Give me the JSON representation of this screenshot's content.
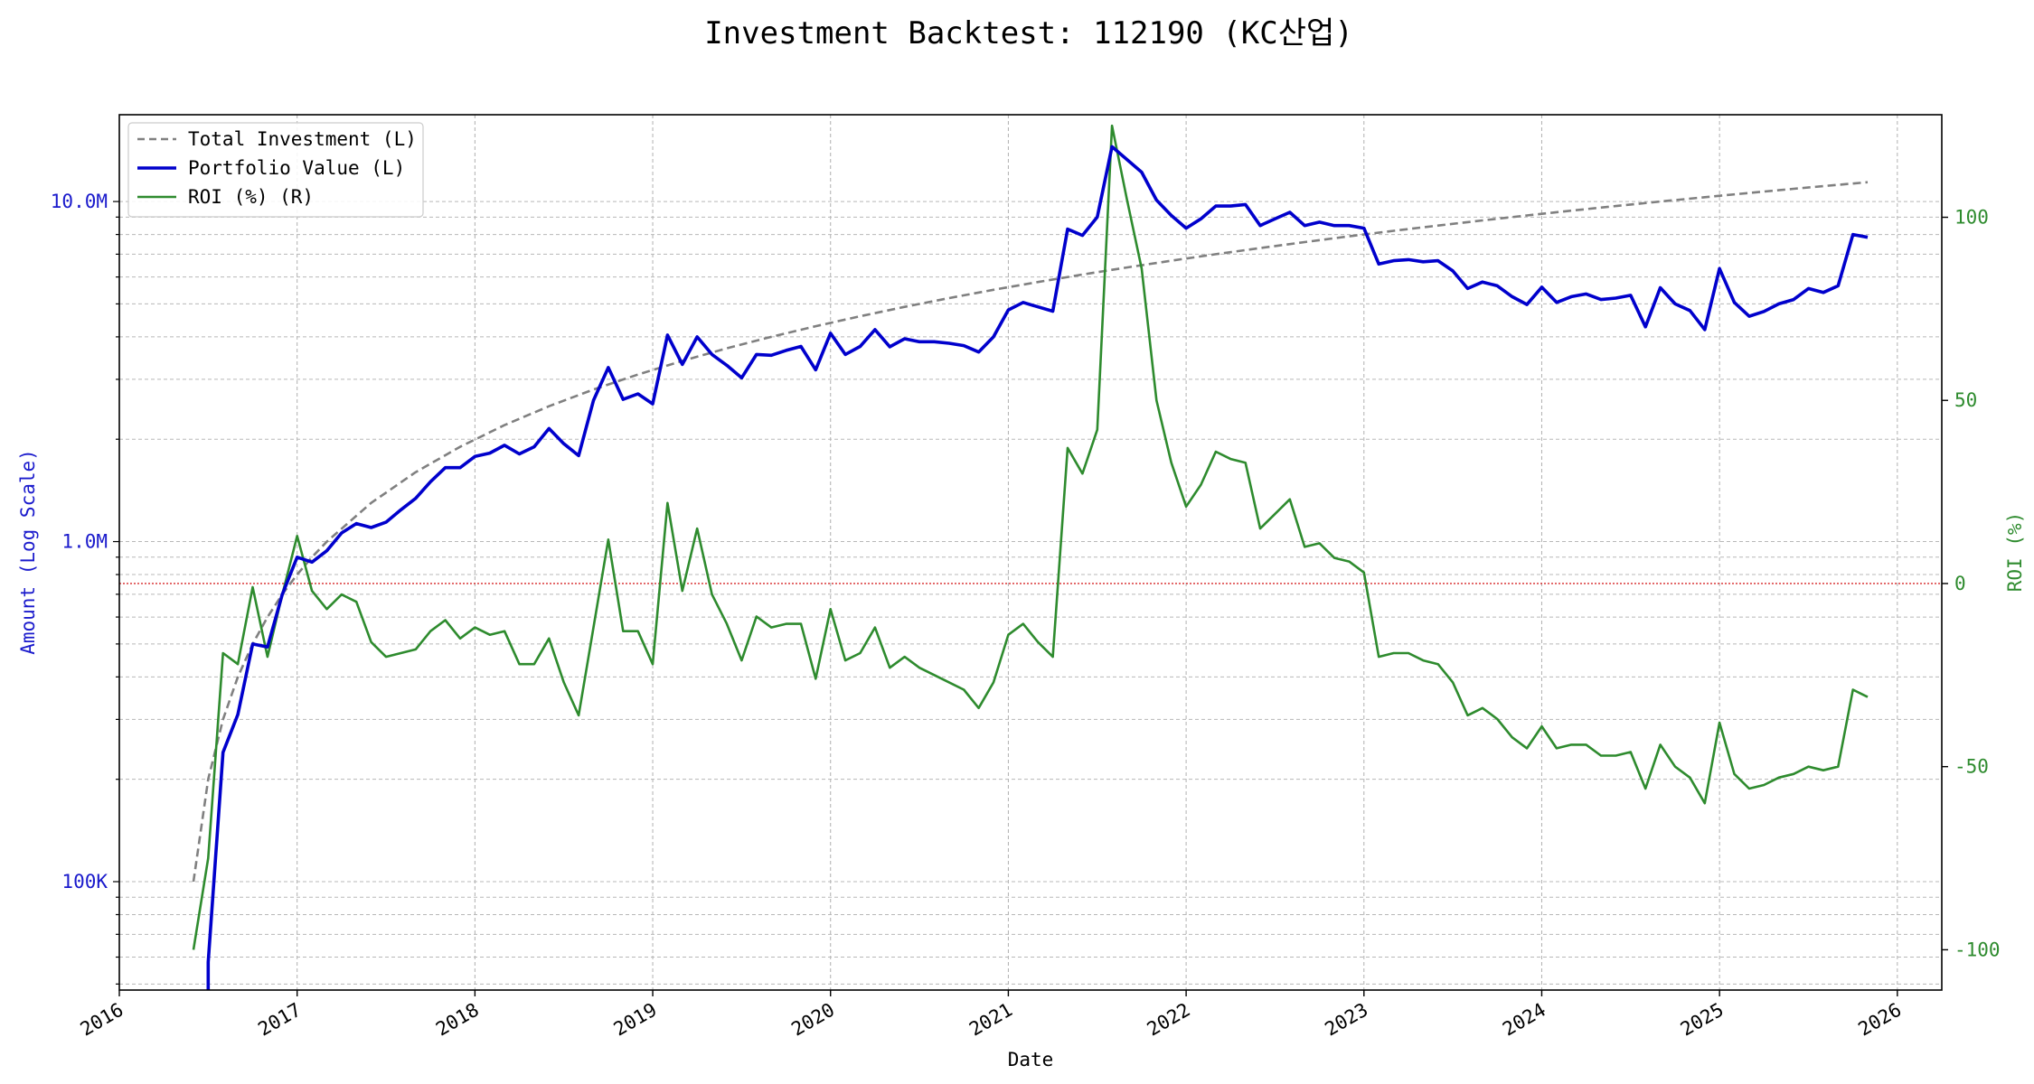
{
  "chart_data": {
    "type": "line",
    "title": "Investment Backtest: 112190 (KC산업)",
    "xlabel": "Date",
    "ylabel_left": "Amount (Log Scale)",
    "ylabel_right": "ROI (%)",
    "left_scale": "log",
    "left_ylim": [
      48000,
      18000000
    ],
    "right_ylim": [
      -111,
      128
    ],
    "xlim": [
      "2016-01-01",
      "2026-04-01"
    ],
    "x_ticks": [
      "2016",
      "2017",
      "2018",
      "2019",
      "2020",
      "2021",
      "2022",
      "2023",
      "2024",
      "2025",
      "2026"
    ],
    "left_ticks": [
      {
        "value": 100000,
        "label": "100K"
      },
      {
        "value": 1000000,
        "label": "1.0M"
      },
      {
        "value": 10000000,
        "label": "10.0M"
      }
    ],
    "right_ticks": [
      -100,
      -50,
      0,
      50,
      100
    ],
    "grid": true,
    "legend_position": "top-left",
    "reference_line": {
      "axis": "right",
      "value": 0,
      "color": "#d62728",
      "style": "dotted"
    },
    "colors": {
      "investment": "#808080",
      "portfolio": "#0000cc",
      "roi": "#2e8b2e",
      "left_axis": "#1a1acc",
      "right_axis": "#2e8b2e"
    },
    "series": [
      {
        "name": "Total Investment (L)",
        "axis": "left",
        "style": "dashed",
        "points": [
          [
            "2016-06",
            100000
          ],
          [
            "2016-07",
            200000
          ],
          [
            "2016-08",
            300000
          ],
          [
            "2016-09",
            400000
          ],
          [
            "2016-10",
            500000
          ],
          [
            "2016-11",
            600000
          ],
          [
            "2016-12",
            700000
          ],
          [
            "2017-01",
            800000
          ],
          [
            "2017-02",
            900000
          ],
          [
            "2017-03",
            1000000
          ],
          [
            "2017-06",
            1300000
          ],
          [
            "2017-09",
            1600000
          ],
          [
            "2017-12",
            1900000
          ],
          [
            "2018-03",
            2200000
          ],
          [
            "2018-06",
            2500000
          ],
          [
            "2018-09",
            2800000
          ],
          [
            "2018-12",
            3100000
          ],
          [
            "2019-03",
            3400000
          ],
          [
            "2019-06",
            3700000
          ],
          [
            "2019-09",
            4000000
          ],
          [
            "2019-12",
            4300000
          ],
          [
            "2020-03",
            4600000
          ],
          [
            "2020-06",
            4900000
          ],
          [
            "2020-09",
            5200000
          ],
          [
            "2020-12",
            5500000
          ],
          [
            "2021-03",
            5800000
          ],
          [
            "2021-06",
            6100000
          ],
          [
            "2021-09",
            6400000
          ],
          [
            "2021-12",
            6700000
          ],
          [
            "2022-03",
            7000000
          ],
          [
            "2022-06",
            7300000
          ],
          [
            "2022-09",
            7600000
          ],
          [
            "2022-12",
            7900000
          ],
          [
            "2023-03",
            8200000
          ],
          [
            "2023-06",
            8500000
          ],
          [
            "2023-09",
            8800000
          ],
          [
            "2023-12",
            9100000
          ],
          [
            "2024-03",
            9400000
          ],
          [
            "2024-06",
            9700000
          ],
          [
            "2024-09",
            10000000
          ],
          [
            "2024-12",
            10300000
          ],
          [
            "2025-03",
            10600000
          ],
          [
            "2025-06",
            10900000
          ],
          [
            "2025-09",
            11200000
          ],
          [
            "2025-11",
            11400000
          ]
        ]
      },
      {
        "name": "Portfolio Value (L)",
        "axis": "left",
        "style": "solid",
        "points": [
          [
            "2016-07",
            40000
          ],
          [
            "2016-07",
            58000
          ],
          [
            "2016-08",
            240000
          ],
          [
            "2016-09",
            310000
          ],
          [
            "2016-10",
            500000
          ],
          [
            "2016-11",
            490000
          ],
          [
            "2016-12",
            700000
          ],
          [
            "2017-01",
            900000
          ],
          [
            "2017-02",
            870000
          ],
          [
            "2017-03",
            940000
          ],
          [
            "2017-04",
            1060000
          ],
          [
            "2017-05",
            1130000
          ],
          [
            "2017-06",
            1100000
          ],
          [
            "2017-07",
            1140000
          ],
          [
            "2017-08",
            1240000
          ],
          [
            "2017-09",
            1340000
          ],
          [
            "2017-10",
            1500000
          ],
          [
            "2017-11",
            1650000
          ],
          [
            "2017-12",
            1650000
          ],
          [
            "2018-01",
            1780000
          ],
          [
            "2018-02",
            1820000
          ],
          [
            "2018-03",
            1920000
          ],
          [
            "2018-04",
            1810000
          ],
          [
            "2018-05",
            1900000
          ],
          [
            "2018-06",
            2150000
          ],
          [
            "2018-07",
            1940000
          ],
          [
            "2018-08",
            1790000
          ],
          [
            "2018-09",
            2600000
          ],
          [
            "2018-10",
            3250000
          ],
          [
            "2018-11",
            2620000
          ],
          [
            "2018-12",
            2720000
          ],
          [
            "2019-01",
            2540000
          ],
          [
            "2019-02",
            4050000
          ],
          [
            "2019-03",
            3320000
          ],
          [
            "2019-04",
            4000000
          ],
          [
            "2019-05",
            3550000
          ],
          [
            "2019-06",
            3300000
          ],
          [
            "2019-07",
            3030000
          ],
          [
            "2019-08",
            3550000
          ],
          [
            "2019-09",
            3530000
          ],
          [
            "2019-10",
            3650000
          ],
          [
            "2019-11",
            3750000
          ],
          [
            "2019-12",
            3200000
          ],
          [
            "2020-01",
            4100000
          ],
          [
            "2020-02",
            3550000
          ],
          [
            "2020-03",
            3750000
          ],
          [
            "2020-04",
            4200000
          ],
          [
            "2020-05",
            3740000
          ],
          [
            "2020-06",
            3950000
          ],
          [
            "2020-07",
            3870000
          ],
          [
            "2020-08",
            3870000
          ],
          [
            "2020-09",
            3830000
          ],
          [
            "2020-10",
            3770000
          ],
          [
            "2020-11",
            3610000
          ],
          [
            "2020-12",
            4000000
          ],
          [
            "2021-01",
            4800000
          ],
          [
            "2021-02",
            5050000
          ],
          [
            "2021-03",
            4900000
          ],
          [
            "2021-04",
            4760000
          ],
          [
            "2021-05",
            8300000
          ],
          [
            "2021-06",
            7950000
          ],
          [
            "2021-07",
            9000000
          ],
          [
            "2021-08",
            14500000
          ],
          [
            "2021-09",
            13300000
          ],
          [
            "2021-10",
            12200000
          ],
          [
            "2021-11",
            10100000
          ],
          [
            "2021-12",
            9100000
          ],
          [
            "2022-01",
            8350000
          ],
          [
            "2022-02",
            8900000
          ],
          [
            "2022-03",
            9700000
          ],
          [
            "2022-04",
            9700000
          ],
          [
            "2022-05",
            9800000
          ],
          [
            "2022-06",
            8500000
          ],
          [
            "2022-07",
            8900000
          ],
          [
            "2022-08",
            9300000
          ],
          [
            "2022-09",
            8500000
          ],
          [
            "2022-10",
            8700000
          ],
          [
            "2022-11",
            8500000
          ],
          [
            "2022-12",
            8500000
          ],
          [
            "2023-01",
            8350000
          ],
          [
            "2023-02",
            6550000
          ],
          [
            "2023-03",
            6700000
          ],
          [
            "2023-04",
            6750000
          ],
          [
            "2023-05",
            6650000
          ],
          [
            "2023-06",
            6700000
          ],
          [
            "2023-07",
            6250000
          ],
          [
            "2023-08",
            5550000
          ],
          [
            "2023-09",
            5800000
          ],
          [
            "2023-10",
            5650000
          ],
          [
            "2023-11",
            5250000
          ],
          [
            "2023-12",
            4980000
          ],
          [
            "2024-01",
            5600000
          ],
          [
            "2024-02",
            5050000
          ],
          [
            "2024-03",
            5250000
          ],
          [
            "2024-04",
            5350000
          ],
          [
            "2024-05",
            5150000
          ],
          [
            "2024-06",
            5200000
          ],
          [
            "2024-07",
            5300000
          ],
          [
            "2024-08",
            4280000
          ],
          [
            "2024-09",
            5580000
          ],
          [
            "2024-10",
            5000000
          ],
          [
            "2024-11",
            4780000
          ],
          [
            "2024-12",
            4200000
          ],
          [
            "2025-01",
            6350000
          ],
          [
            "2025-02",
            5050000
          ],
          [
            "2025-03",
            4600000
          ],
          [
            "2025-04",
            4750000
          ],
          [
            "2025-05",
            5000000
          ],
          [
            "2025-06",
            5150000
          ],
          [
            "2025-07",
            5550000
          ],
          [
            "2025-08",
            5400000
          ],
          [
            "2025-09",
            5650000
          ],
          [
            "2025-10",
            8000000
          ],
          [
            "2025-11",
            7850000
          ]
        ]
      },
      {
        "name": "ROI (%) (R)",
        "axis": "right",
        "style": "solid",
        "points": [
          [
            "2016-06",
            -100
          ],
          [
            "2016-07",
            -75
          ],
          [
            "2016-08",
            -19
          ],
          [
            "2016-09",
            -22
          ],
          [
            "2016-10",
            -1
          ],
          [
            "2016-11",
            -20
          ],
          [
            "2016-12",
            -3
          ],
          [
            "2017-01",
            13
          ],
          [
            "2017-02",
            -2
          ],
          [
            "2017-03",
            -7
          ],
          [
            "2017-04",
            -3
          ],
          [
            "2017-05",
            -5
          ],
          [
            "2017-06",
            -16
          ],
          [
            "2017-07",
            -20
          ],
          [
            "2017-08",
            -19
          ],
          [
            "2017-09",
            -18
          ],
          [
            "2017-10",
            -13
          ],
          [
            "2017-11",
            -10
          ],
          [
            "2017-12",
            -15
          ],
          [
            "2018-01",
            -12
          ],
          [
            "2018-02",
            -14
          ],
          [
            "2018-03",
            -13
          ],
          [
            "2018-04",
            -22
          ],
          [
            "2018-05",
            -22
          ],
          [
            "2018-06",
            -15
          ],
          [
            "2018-07",
            -27
          ],
          [
            "2018-08",
            -36
          ],
          [
            "2018-09",
            -12
          ],
          [
            "2018-10",
            12
          ],
          [
            "2018-11",
            -13
          ],
          [
            "2018-12",
            -13
          ],
          [
            "2019-01",
            -22
          ],
          [
            "2019-02",
            22
          ],
          [
            "2019-03",
            -2
          ],
          [
            "2019-04",
            15
          ],
          [
            "2019-05",
            -3
          ],
          [
            "2019-06",
            -11
          ],
          [
            "2019-07",
            -21
          ],
          [
            "2019-08",
            -9
          ],
          [
            "2019-09",
            -12
          ],
          [
            "2019-10",
            -11
          ],
          [
            "2019-11",
            -11
          ],
          [
            "2019-12",
            -26
          ],
          [
            "2020-01",
            -7
          ],
          [
            "2020-02",
            -21
          ],
          [
            "2020-03",
            -19
          ],
          [
            "2020-04",
            -12
          ],
          [
            "2020-05",
            -23
          ],
          [
            "2020-06",
            -20
          ],
          [
            "2020-07",
            -23
          ],
          [
            "2020-08",
            -25
          ],
          [
            "2020-09",
            -27
          ],
          [
            "2020-10",
            -29
          ],
          [
            "2020-11",
            -34
          ],
          [
            "2020-12",
            -27
          ],
          [
            "2021-01",
            -14
          ],
          [
            "2021-02",
            -11
          ],
          [
            "2021-03",
            -16
          ],
          [
            "2021-04",
            -20
          ],
          [
            "2021-05",
            37
          ],
          [
            "2021-06",
            30
          ],
          [
            "2021-07",
            42
          ],
          [
            "2021-08",
            125
          ],
          [
            "2021-09",
            105
          ],
          [
            "2021-10",
            86
          ],
          [
            "2021-11",
            50
          ],
          [
            "2021-12",
            33
          ],
          [
            "2022-01",
            21
          ],
          [
            "2022-02",
            27
          ],
          [
            "2022-03",
            36
          ],
          [
            "2022-04",
            34
          ],
          [
            "2022-05",
            33
          ],
          [
            "2022-06",
            15
          ],
          [
            "2022-07",
            19
          ],
          [
            "2022-08",
            23
          ],
          [
            "2022-09",
            10
          ],
          [
            "2022-10",
            11
          ],
          [
            "2022-11",
            7
          ],
          [
            "2022-12",
            6
          ],
          [
            "2023-01",
            3
          ],
          [
            "2023-02",
            -20
          ],
          [
            "2023-03",
            -19
          ],
          [
            "2023-04",
            -19
          ],
          [
            "2023-05",
            -21
          ],
          [
            "2023-06",
            -22
          ],
          [
            "2023-07",
            -27
          ],
          [
            "2023-08",
            -36
          ],
          [
            "2023-09",
            -34
          ],
          [
            "2023-10",
            -37
          ],
          [
            "2023-11",
            -42
          ],
          [
            "2023-12",
            -45
          ],
          [
            "2024-01",
            -39
          ],
          [
            "2024-02",
            -45
          ],
          [
            "2024-03",
            -44
          ],
          [
            "2024-04",
            -44
          ],
          [
            "2024-05",
            -47
          ],
          [
            "2024-06",
            -47
          ],
          [
            "2024-07",
            -46
          ],
          [
            "2024-08",
            -56
          ],
          [
            "2024-09",
            -44
          ],
          [
            "2024-10",
            -50
          ],
          [
            "2024-11",
            -53
          ],
          [
            "2024-12",
            -60
          ],
          [
            "2025-01",
            -38
          ],
          [
            "2025-02",
            -52
          ],
          [
            "2025-03",
            -56
          ],
          [
            "2025-04",
            -55
          ],
          [
            "2025-05",
            -53
          ],
          [
            "2025-06",
            -52
          ],
          [
            "2025-07",
            -50
          ],
          [
            "2025-08",
            -51
          ],
          [
            "2025-09",
            -50
          ],
          [
            "2025-10",
            -29
          ],
          [
            "2025-11",
            -31
          ]
        ]
      }
    ]
  }
}
